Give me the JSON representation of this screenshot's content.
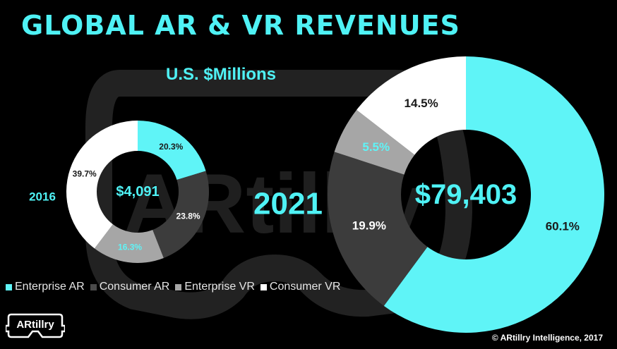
{
  "title": "GLOBAL AR & VR REVENUES",
  "subtitle": "U.S. $Millions",
  "watermark": "ARtillry",
  "logo_text": "ARtillry",
  "copyright": "© ARtillry Intelligence, 2017",
  "colors": {
    "Enterprise AR": "#5ff4f7",
    "Consumer AR": "#3c3c3c",
    "Enterprise VR": "#a6a6a6",
    "Consumer VR": "#ffffff",
    "accent": "#4ff2f5"
  },
  "legend": [
    "Enterprise AR",
    "Consumer AR",
    "Enterprise VR",
    "Consumer VR"
  ],
  "chart_data": [
    {
      "type": "pie",
      "year_label": "2016",
      "center_label": "$4,091",
      "categories": [
        "Enterprise AR",
        "Consumer AR",
        "Enterprise VR",
        "Consumer VR"
      ],
      "values": [
        20.3,
        23.8,
        16.3,
        39.7
      ],
      "labels": [
        "20.3%",
        "23.8%",
        "16.3%",
        "39.7%"
      ],
      "donut": true,
      "legend_position": "bottom-left"
    },
    {
      "type": "pie",
      "year_label": "2021",
      "center_label": "$79,403",
      "categories": [
        "Enterprise AR",
        "Consumer AR",
        "Enterprise VR",
        "Consumer VR"
      ],
      "values": [
        60.1,
        19.9,
        5.5,
        14.5
      ],
      "labels": [
        "60.1%",
        "19.9%",
        "5.5%",
        "14.5%"
      ],
      "donut": true,
      "legend_position": "bottom-left"
    }
  ]
}
